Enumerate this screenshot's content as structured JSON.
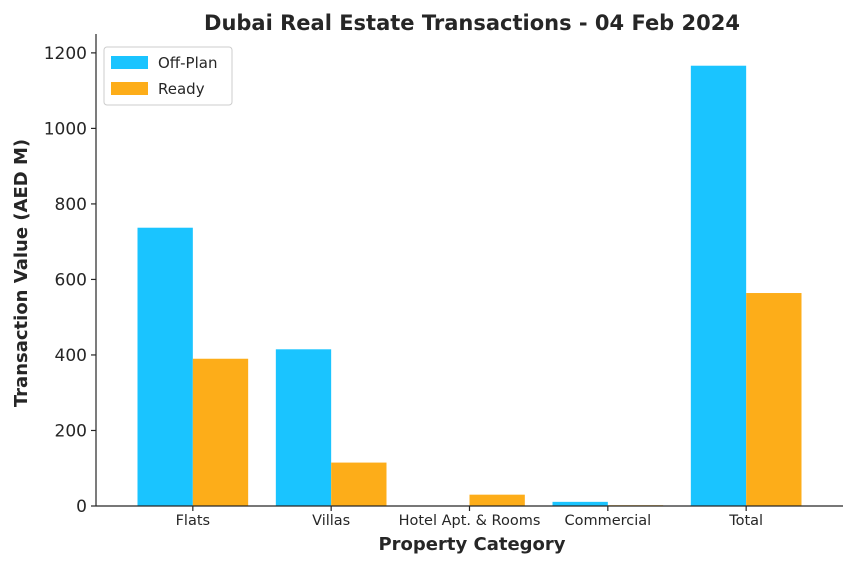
{
  "colors": {
    "off_plan": "#1AC4FF",
    "ready": "#FDAD19"
  },
  "chart_data": {
    "type": "bar",
    "title": "Dubai Real Estate Transactions - 04 Feb 2024",
    "xlabel": "Property Category",
    "ylabel": "Transaction Value (AED M)",
    "categories": [
      "Flats",
      "Villas",
      "Hotel Apt. & Rooms",
      "Commercial",
      "Total"
    ],
    "series": [
      {
        "name": "Off-Plan",
        "values": [
          737,
          415,
          0,
          11,
          1166
        ]
      },
      {
        "name": "Ready",
        "values": [
          390,
          115,
          30,
          2,
          564
        ]
      }
    ],
    "ylim": [
      0,
      1250
    ],
    "yticks": [
      0,
      200,
      400,
      600,
      800,
      1000,
      1200
    ],
    "grid": false,
    "legend": "top-left"
  }
}
